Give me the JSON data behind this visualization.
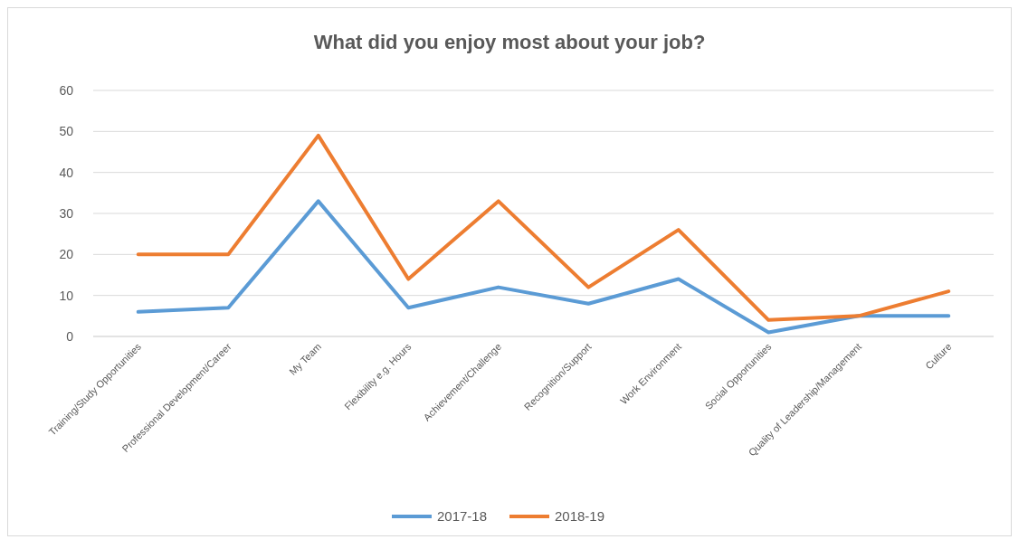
{
  "chart_data": {
    "type": "line",
    "title": "What did you enjoy most about your job?",
    "categories": [
      "Training/Study Opportunities",
      "Professional Development/Career",
      "My Team",
      "Flexibility e.g. Hours",
      "Achievement/Challenge",
      "Recognition/Support",
      "Work Environment",
      "Social Opportunities",
      "Quality of Leadership/Management",
      "Culture"
    ],
    "series": [
      {
        "name": "2017-18",
        "color": "#5b9bd5",
        "values": [
          6,
          7,
          33,
          7,
          12,
          8,
          14,
          1,
          5,
          5
        ]
      },
      {
        "name": "2018-19",
        "color": "#ed7d31",
        "values": [
          20,
          20,
          49,
          14,
          33,
          12,
          26,
          4,
          5,
          11
        ]
      }
    ],
    "ylim": [
      0,
      60
    ],
    "yticks": [
      0,
      10,
      20,
      30,
      40,
      50,
      60
    ],
    "grid": "y",
    "legend": "bottom"
  }
}
